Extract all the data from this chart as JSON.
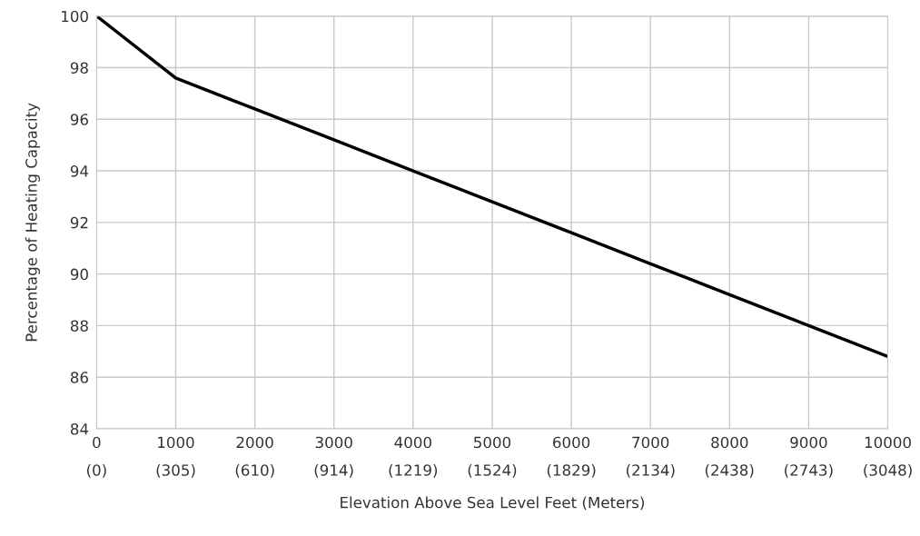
{
  "chart_data": {
    "type": "line",
    "xlabel": "Elevation Above Sea Level Feet (Meters)",
    "ylabel": "Percentage of Heating Capacity",
    "x": [
      0,
      1000,
      2000,
      3000,
      4000,
      5000,
      6000,
      7000,
      8000,
      9000,
      10000
    ],
    "series": [
      {
        "color": "#000000",
        "values": [
          100,
          97.6,
          96.4,
          95.2,
          94.0,
          92.8,
          91.6,
          90.4,
          89.2,
          88.0,
          86.8
        ]
      }
    ],
    "xlim": [
      0,
      10000
    ],
    "xticks": [
      0,
      1000,
      2000,
      3000,
      4000,
      5000,
      6000,
      7000,
      8000,
      9000,
      10000
    ],
    "x2lim": [
      0,
      3048
    ],
    "x2ticks": [
      {
        "value": 0,
        "label": "(0)"
      },
      {
        "value": 305,
        "label": "(305)"
      },
      {
        "value": 610,
        "label": "(610)"
      },
      {
        "value": 914,
        "label": "(914)"
      },
      {
        "value": 1219,
        "label": "(1219)"
      },
      {
        "value": 1524,
        "label": "(1524)"
      },
      {
        "value": 1829,
        "label": "(1829)"
      },
      {
        "value": 2134,
        "label": "(2134)"
      },
      {
        "value": 2438,
        "label": "(2438)"
      },
      {
        "value": 2743,
        "label": "(2743)"
      },
      {
        "value": 3048,
        "label": "(3048)"
      }
    ],
    "ylim": [
      84,
      100
    ],
    "yticks": [
      84,
      86,
      88,
      90,
      92,
      94,
      96,
      98,
      100
    ],
    "grid": true,
    "marker": "none",
    "line_style": "solid"
  }
}
